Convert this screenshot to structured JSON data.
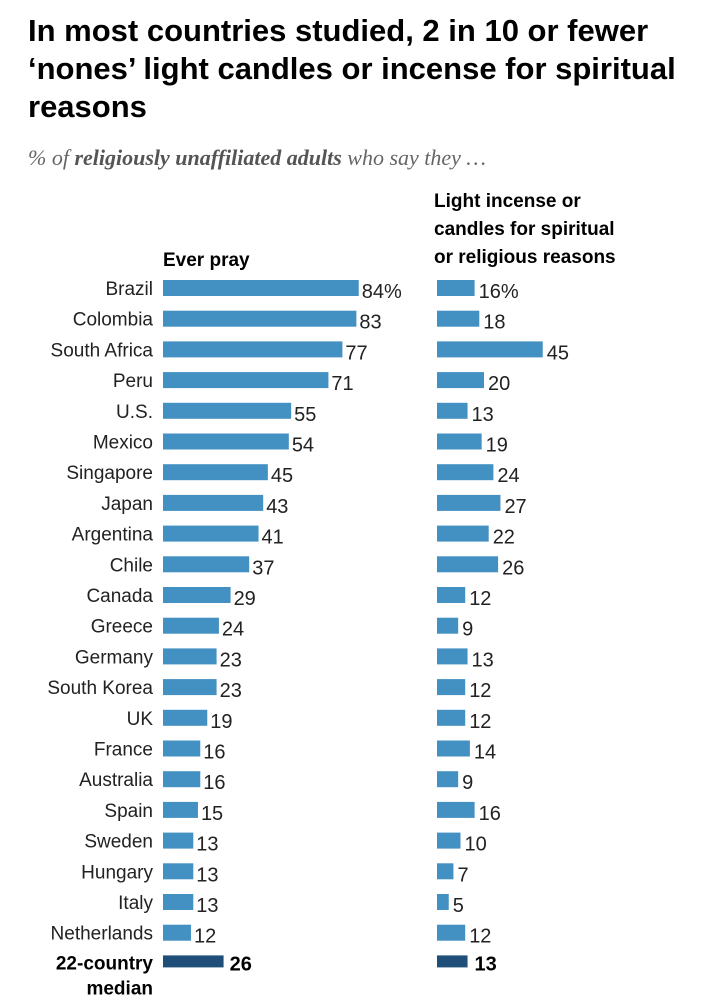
{
  "title": "In most countries studied, 2 in 10 or fewer ‘nones’ light candles or incense for spiritual reasons",
  "subtitle": {
    "prefix": "% of ",
    "emphasis": "religiously unaffiliated adults",
    "suffix": " who say they …"
  },
  "colors": {
    "bar": "#4390c2",
    "median_bar": "#1f4e79"
  },
  "chart_data": {
    "type": "bar",
    "orientation": "horizontal",
    "categories": [
      "Brazil",
      "Colombia",
      "South Africa",
      "Peru",
      "U.S.",
      "Mexico",
      "Singapore",
      "Japan",
      "Argentina",
      "Chile",
      "Canada",
      "Greece",
      "Germany",
      "South Korea",
      "UK",
      "France",
      "Australia",
      "Spain",
      "Sweden",
      "Hungary",
      "Italy",
      "Netherlands"
    ],
    "series": [
      {
        "name": "Ever pray",
        "values": [
          84,
          83,
          77,
          71,
          55,
          54,
          45,
          43,
          41,
          37,
          29,
          24,
          23,
          23,
          19,
          16,
          16,
          15,
          13,
          13,
          13,
          12
        ],
        "first_value_label": "84%",
        "median": 26
      },
      {
        "name": "Light incense or candles for spiritual or religious reasons",
        "values": [
          16,
          18,
          45,
          20,
          13,
          19,
          24,
          27,
          22,
          26,
          12,
          9,
          13,
          12,
          12,
          14,
          9,
          16,
          10,
          7,
          5,
          12
        ],
        "first_value_label": "16%",
        "median": 13
      }
    ],
    "median_label": "22-country median",
    "unit": "%"
  },
  "columns": {
    "pray_header": "Ever pray",
    "candles_header_lines": [
      "Light incense or",
      "candles for spiritual",
      "or religious reasons"
    ]
  },
  "median_label_lines": [
    "22-country",
    "median"
  ]
}
